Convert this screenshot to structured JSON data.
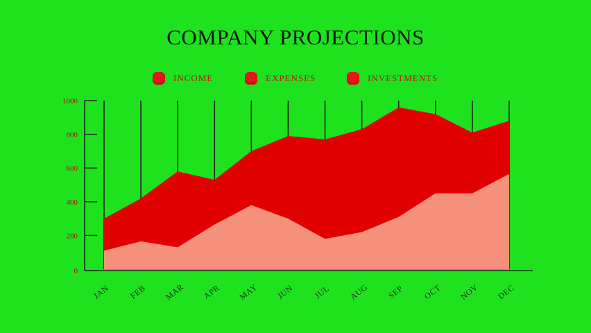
{
  "chart_data": {
    "type": "area",
    "title": "COMPANY PROJECTIONS",
    "categories": [
      "JAN",
      "FEB",
      "MAR",
      "APR",
      "MAY",
      "JUN",
      "JUL",
      "AUG",
      "SEP",
      "OCT",
      "NOV",
      "DEC"
    ],
    "series": [
      {
        "name": "INCOME",
        "values": [
          110,
          165,
          130,
          265,
          380,
          300,
          180,
          220,
          310,
          450,
          450,
          565
        ],
        "color": "#f5917a"
      },
      {
        "name": "EXPENSES",
        "values": [
          300,
          420,
          580,
          530,
          700,
          790,
          770,
          830,
          960,
          920,
          810,
          880
        ],
        "color": "#e00000"
      },
      {
        "name": "INVESTMENTS",
        "values": [
          1000,
          1000,
          1000,
          1000,
          1000,
          1000,
          1000,
          1000,
          1000,
          1000,
          1000,
          1000
        ],
        "color": "#222222"
      }
    ],
    "legend": [
      {
        "label": "INCOME",
        "color": "#e8141a"
      },
      {
        "label": "EXPENSES",
        "color": "#e8141a"
      },
      {
        "label": "INVESTMENTS",
        "color": "#e8141a"
      }
    ],
    "y_ticks": [
      "1000",
      "800",
      "600",
      "400",
      "200",
      "0"
    ],
    "ylim": [
      0,
      1000
    ],
    "grid": false,
    "legend_position": "top-center"
  }
}
